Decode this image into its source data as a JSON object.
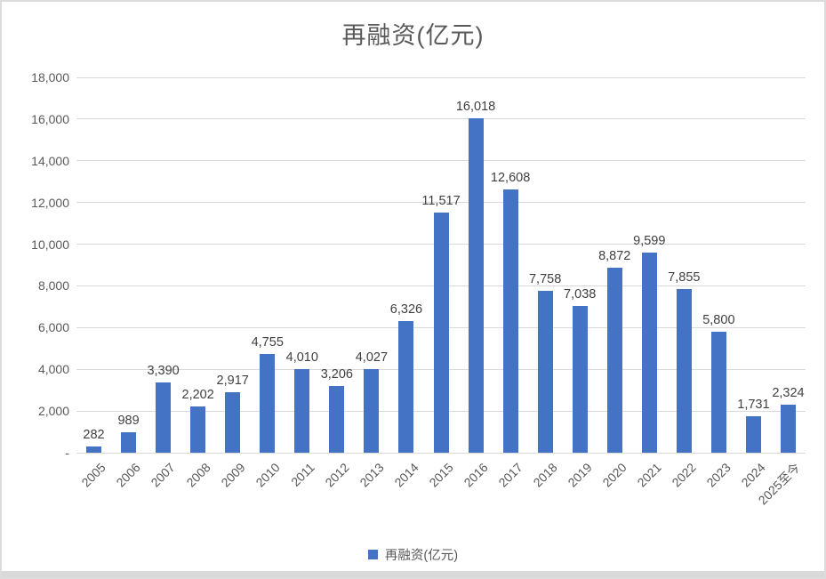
{
  "chart_data": {
    "type": "bar",
    "title": "再融资(亿元)",
    "categories": [
      "2005",
      "2006",
      "2007",
      "2008",
      "2009",
      "2010",
      "2011",
      "2012",
      "2013",
      "2014",
      "2015",
      "2016",
      "2017",
      "2018",
      "2019",
      "2020",
      "2021",
      "2022",
      "2023",
      "2024",
      "2025至今"
    ],
    "values": [
      282,
      989,
      3390,
      2202,
      2917,
      4755,
      4010,
      3206,
      4027,
      6326,
      11517,
      16018,
      12608,
      7758,
      7038,
      8872,
      9599,
      7855,
      5800,
      1731,
      2324
    ],
    "data_labels": [
      "282",
      "989",
      "3,390",
      "2,202",
      "2,917",
      "4,755",
      "4,010",
      "3,206",
      "4,027",
      "6,326",
      "11,517",
      "16,018",
      "12,608",
      "7,758",
      "7,038",
      "8,872",
      "9,599",
      "7,855",
      "5,800",
      "1,731",
      "2,324"
    ],
    "xlabel": "",
    "ylabel": "",
    "ylim": [
      0,
      18000
    ],
    "y_tick_step": 2000,
    "y_tick_labels": [
      "-",
      "2,000",
      "4,000",
      "6,000",
      "8,000",
      "10,000",
      "12,000",
      "14,000",
      "16,000",
      "18,000"
    ],
    "grid": true,
    "legend": {
      "label": "再融资(亿元)",
      "position": "bottom"
    },
    "bar_color": "#4472C4"
  },
  "colors": {
    "bar": "#4472C4",
    "title_text": "#595959",
    "axis_text": "#595959",
    "data_label_text": "#404040",
    "gridline": "#d9d9d9",
    "frame_border": "#dcdcdc",
    "bottom_strip": "#d9d9d9"
  }
}
